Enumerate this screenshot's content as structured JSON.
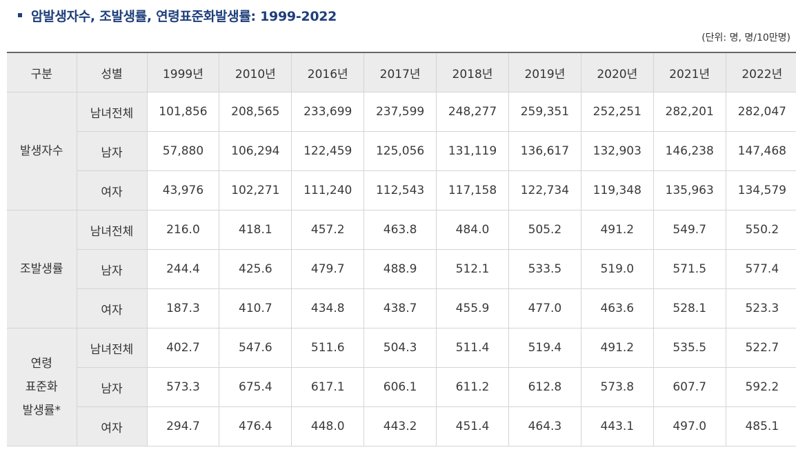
{
  "title": "암발생자수, 조발생률, 연령표준화발생률: 1999-2022",
  "unit": "(단위: 명, 명/10만명)",
  "header": {
    "category": "구분",
    "sex": "성별",
    "years": [
      "1999년",
      "2010년",
      "2016년",
      "2017년",
      "2018년",
      "2019년",
      "2020년",
      "2021년",
      "2022년"
    ]
  },
  "groups": [
    {
      "label_lines": [
        "발생자수"
      ],
      "rows": [
        {
          "sex": "남녀전체",
          "values": [
            "101,856",
            "208,565",
            "233,699",
            "237,599",
            "248,277",
            "259,351",
            "252,251",
            "282,201",
            "282,047"
          ]
        },
        {
          "sex": "남자",
          "values": [
            "57,880",
            "106,294",
            "122,459",
            "125,056",
            "131,119",
            "136,617",
            "132,903",
            "146,238",
            "147,468"
          ]
        },
        {
          "sex": "여자",
          "values": [
            "43,976",
            "102,271",
            "111,240",
            "112,543",
            "117,158",
            "122,734",
            "119,348",
            "135,963",
            "134,579"
          ]
        }
      ]
    },
    {
      "label_lines": [
        "조발생률"
      ],
      "rows": [
        {
          "sex": "남녀전체",
          "values": [
            "216.0",
            "418.1",
            "457.2",
            "463.8",
            "484.0",
            "505.2",
            "491.2",
            "549.7",
            "550.2"
          ]
        },
        {
          "sex": "남자",
          "values": [
            "244.4",
            "425.6",
            "479.7",
            "488.9",
            "512.1",
            "533.5",
            "519.0",
            "571.5",
            "577.4"
          ]
        },
        {
          "sex": "여자",
          "values": [
            "187.3",
            "410.7",
            "434.8",
            "438.7",
            "455.9",
            "477.0",
            "463.6",
            "528.1",
            "523.3"
          ]
        }
      ]
    },
    {
      "label_lines": [
        "연령",
        "표준화",
        "발생률*"
      ],
      "rows": [
        {
          "sex": "남녀전체",
          "values": [
            "402.7",
            "547.6",
            "511.6",
            "504.3",
            "511.4",
            "519.4",
            "491.2",
            "535.5",
            "522.7"
          ]
        },
        {
          "sex": "남자",
          "values": [
            "573.3",
            "675.4",
            "617.1",
            "606.1",
            "611.2",
            "612.8",
            "573.8",
            "607.7",
            "592.2"
          ]
        },
        {
          "sex": "여자",
          "values": [
            "294.7",
            "476.4",
            "448.0",
            "443.2",
            "451.4",
            "464.3",
            "443.1",
            "497.0",
            "485.1"
          ]
        }
      ]
    }
  ]
}
